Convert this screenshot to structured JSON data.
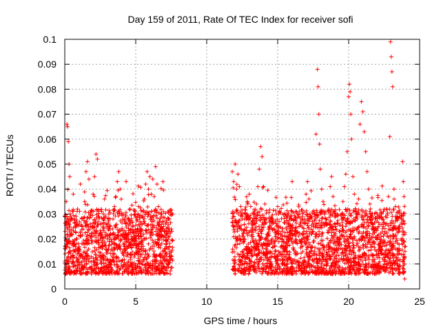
{
  "chart_data": {
    "type": "scatter",
    "title": "Day 159 of 2011, Rate Of TEC Index for receiver sofi",
    "xlabel": "GPS time / hours",
    "ylabel": "ROTI / TECUs",
    "xlim": [
      0,
      25
    ],
    "ylim": [
      0,
      0.1
    ],
    "x_ticks": [
      0,
      5,
      10,
      15,
      20,
      25
    ],
    "x_tick_labels": [
      "0",
      "5",
      "10",
      "15",
      "20",
      "25"
    ],
    "y_ticks": [
      0,
      0.01,
      0.02,
      0.03,
      0.04,
      0.05,
      0.06,
      0.07,
      0.08,
      0.09,
      0.1
    ],
    "y_tick_labels": [
      "0",
      "0.01",
      "0.02",
      "0.03",
      "0.04",
      "0.05",
      "0.06",
      "0.07",
      "0.08",
      "0.09",
      "0.1"
    ],
    "grid": true,
    "marker": "plus",
    "series": [
      {
        "name": "ROTI",
        "color": "#ff0000",
        "points": [
          [
            0.05,
            0.016
          ],
          [
            0.1,
            0.035
          ],
          [
            0.15,
            0.066
          ],
          [
            0.2,
            0.065
          ],
          [
            0.25,
            0.059
          ],
          [
            0.3,
            0.05
          ],
          [
            0.35,
            0.045
          ],
          [
            0.4,
            0.03
          ],
          [
            0.45,
            0.022
          ],
          [
            0.5,
            0.018
          ],
          [
            0.6,
            0.038
          ],
          [
            0.7,
            0.028
          ],
          [
            0.8,
            0.02
          ],
          [
            0.9,
            0.032
          ],
          [
            1.0,
            0.015
          ],
          [
            1.1,
            0.042
          ],
          [
            1.2,
            0.025
          ],
          [
            1.3,
            0.018
          ],
          [
            1.4,
            0.035
          ],
          [
            1.5,
            0.047
          ],
          [
            1.6,
            0.051
          ],
          [
            1.7,
            0.044
          ],
          [
            1.8,
            0.03
          ],
          [
            1.9,
            0.022
          ],
          [
            2.0,
            0.038
          ],
          [
            2.1,
            0.045
          ],
          [
            2.2,
            0.054
          ],
          [
            2.3,
            0.052
          ],
          [
            2.4,
            0.029
          ],
          [
            2.5,
            0.02
          ],
          [
            2.6,
            0.031
          ],
          [
            2.7,
            0.017
          ],
          [
            2.8,
            0.036
          ],
          [
            2.9,
            0.026
          ],
          [
            3.0,
            0.02
          ],
          [
            3.1,
            0.03
          ],
          [
            3.2,
            0.024
          ],
          [
            3.3,
            0.016
          ],
          [
            3.4,
            0.028
          ],
          [
            3.5,
            0.033
          ],
          [
            3.6,
            0.037
          ],
          [
            3.7,
            0.043
          ],
          [
            3.8,
            0.047
          ],
          [
            3.9,
            0.04
          ],
          [
            4.0,
            0.03
          ],
          [
            4.1,
            0.022
          ],
          [
            4.2,
            0.017
          ],
          [
            4.3,
            0.026
          ],
          [
            4.4,
            0.02
          ],
          [
            4.5,
            0.028
          ],
          [
            4.6,
            0.032
          ],
          [
            4.7,
            0.021
          ],
          [
            4.8,
            0.025
          ],
          [
            4.9,
            0.018
          ],
          [
            5.0,
            0.029
          ],
          [
            5.1,
            0.023
          ],
          [
            5.2,
            0.033
          ],
          [
            5.3,
            0.027
          ],
          [
            5.4,
            0.019
          ],
          [
            5.5,
            0.031
          ],
          [
            5.6,
            0.036
          ],
          [
            5.7,
            0.042
          ],
          [
            5.8,
            0.047
          ],
          [
            5.9,
            0.04
          ],
          [
            6.0,
            0.045
          ],
          [
            6.1,
            0.038
          ],
          [
            6.2,
            0.044
          ],
          [
            6.3,
            0.037
          ],
          [
            6.4,
            0.049
          ],
          [
            6.5,
            0.042
          ],
          [
            6.6,
            0.033
          ],
          [
            6.7,
            0.024
          ],
          [
            6.8,
            0.03
          ],
          [
            6.9,
            0.027
          ],
          [
            7.0,
            0.021
          ],
          [
            7.1,
            0.026
          ],
          [
            7.2,
            0.019
          ],
          [
            7.3,
            0.023
          ],
          [
            7.4,
            0.017
          ],
          [
            7.5,
            0.024
          ],
          [
            11.8,
            0.047
          ],
          [
            11.9,
            0.043
          ],
          [
            12.0,
            0.05
          ],
          [
            12.1,
            0.04
          ],
          [
            12.2,
            0.046
          ],
          [
            12.3,
            0.041
          ],
          [
            12.4,
            0.033
          ],
          [
            12.5,
            0.028
          ],
          [
            12.6,
            0.021
          ],
          [
            12.7,
            0.024
          ],
          [
            12.8,
            0.029
          ],
          [
            12.9,
            0.034
          ],
          [
            13.0,
            0.038
          ],
          [
            13.1,
            0.033
          ],
          [
            13.2,
            0.026
          ],
          [
            13.3,
            0.03
          ],
          [
            13.4,
            0.024
          ],
          [
            13.5,
            0.034
          ],
          [
            13.6,
            0.041
          ],
          [
            13.7,
            0.048
          ],
          [
            13.8,
            0.057
          ],
          [
            13.9,
            0.053
          ],
          [
            14.0,
            0.041
          ],
          [
            14.1,
            0.034
          ],
          [
            14.2,
            0.028
          ],
          [
            14.3,
            0.022
          ],
          [
            14.4,
            0.018
          ],
          [
            14.5,
            0.015
          ],
          [
            14.6,
            0.02
          ],
          [
            14.7,
            0.024
          ],
          [
            14.8,
            0.017
          ],
          [
            14.9,
            0.03
          ],
          [
            15.0,
            0.033
          ],
          [
            15.1,
            0.027
          ],
          [
            15.2,
            0.022
          ],
          [
            15.3,
            0.019
          ],
          [
            15.4,
            0.016
          ],
          [
            15.5,
            0.021
          ],
          [
            15.6,
            0.018
          ],
          [
            15.7,
            0.014
          ],
          [
            15.8,
            0.02
          ],
          [
            15.9,
            0.023
          ],
          [
            16.0,
            0.019
          ],
          [
            16.1,
            0.016
          ],
          [
            16.2,
            0.022
          ],
          [
            16.3,
            0.028
          ],
          [
            16.4,
            0.03
          ],
          [
            16.5,
            0.025
          ],
          [
            16.6,
            0.019
          ],
          [
            16.7,
            0.017
          ],
          [
            16.8,
            0.022
          ],
          [
            16.9,
            0.028
          ],
          [
            17.0,
            0.038
          ],
          [
            17.1,
            0.043
          ],
          [
            17.2,
            0.036
          ],
          [
            17.3,
            0.029
          ],
          [
            17.4,
            0.022
          ],
          [
            17.5,
            0.026
          ],
          [
            17.6,
            0.03
          ],
          [
            17.7,
            0.062
          ],
          [
            17.8,
            0.088
          ],
          [
            17.85,
            0.081
          ],
          [
            17.9,
            0.07
          ],
          [
            17.95,
            0.058
          ],
          [
            18.0,
            0.048
          ],
          [
            18.1,
            0.04
          ],
          [
            18.2,
            0.035
          ],
          [
            18.3,
            0.03
          ],
          [
            18.4,
            0.028
          ],
          [
            18.5,
            0.026
          ],
          [
            18.6,
            0.032
          ],
          [
            18.7,
            0.041
          ],
          [
            18.8,
            0.045
          ],
          [
            18.9,
            0.037
          ],
          [
            19.0,
            0.031
          ],
          [
            19.1,
            0.025
          ],
          [
            19.2,
            0.019
          ],
          [
            19.3,
            0.016
          ],
          [
            19.4,
            0.023
          ],
          [
            19.5,
            0.028
          ],
          [
            19.6,
            0.035
          ],
          [
            19.7,
            0.041
          ],
          [
            19.8,
            0.046
          ],
          [
            19.9,
            0.055
          ],
          [
            20.0,
            0.077
          ],
          [
            20.05,
            0.082
          ],
          [
            20.1,
            0.079
          ],
          [
            20.15,
            0.07
          ],
          [
            20.2,
            0.06
          ],
          [
            20.3,
            0.045
          ],
          [
            20.4,
            0.038
          ],
          [
            20.5,
            0.031
          ],
          [
            20.6,
            0.028
          ],
          [
            20.7,
            0.036
          ],
          [
            20.8,
            0.066
          ],
          [
            20.9,
            0.075
          ],
          [
            21.0,
            0.071
          ],
          [
            21.1,
            0.063
          ],
          [
            21.2,
            0.055
          ],
          [
            21.3,
            0.047
          ],
          [
            21.4,
            0.04
          ],
          [
            21.5,
            0.034
          ],
          [
            21.6,
            0.028
          ],
          [
            21.7,
            0.022
          ],
          [
            21.8,
            0.018
          ],
          [
            21.9,
            0.024
          ],
          [
            22.0,
            0.029
          ],
          [
            22.1,
            0.025
          ],
          [
            22.2,
            0.02
          ],
          [
            22.3,
            0.016
          ],
          [
            22.4,
            0.012
          ],
          [
            22.5,
            0.019
          ],
          [
            22.6,
            0.026
          ],
          [
            22.7,
            0.032
          ],
          [
            22.8,
            0.037
          ],
          [
            22.9,
            0.061
          ],
          [
            22.95,
            0.099
          ],
          [
            23.0,
            0.093
          ],
          [
            23.05,
            0.087
          ],
          [
            23.1,
            0.081
          ],
          [
            23.2,
            0.04
          ],
          [
            23.3,
            0.033
          ],
          [
            23.4,
            0.028
          ],
          [
            23.5,
            0.023
          ],
          [
            23.6,
            0.025
          ],
          [
            23.7,
            0.02
          ],
          [
            23.8,
            0.051
          ],
          [
            23.85,
            0.043
          ],
          [
            23.9,
            0.037
          ],
          [
            23.95,
            0.004
          ]
        ]
      }
    ]
  }
}
